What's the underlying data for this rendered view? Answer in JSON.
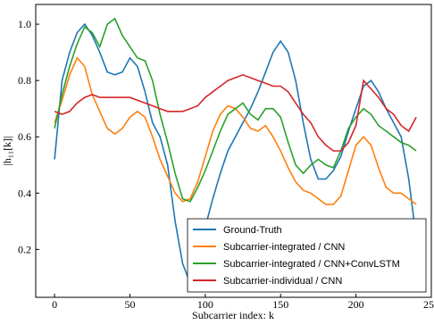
{
  "chart_data": {
    "type": "line",
    "x_label": "Subcarrier index: k",
    "y_label": "|h₁₁[k]|",
    "x": [
      0,
      5,
      10,
      15,
      20,
      25,
      30,
      35,
      40,
      45,
      50,
      55,
      60,
      65,
      70,
      75,
      80,
      85,
      90,
      95,
      100,
      105,
      110,
      115,
      120,
      125,
      130,
      135,
      140,
      145,
      150,
      155,
      160,
      165,
      170,
      175,
      180,
      185,
      190,
      195,
      200,
      205,
      210,
      215,
      220,
      225,
      230,
      235,
      240
    ],
    "series": [
      {
        "name": "Ground-Truth",
        "color": "#1f77b4",
        "values": [
          0.52,
          0.8,
          0.9,
          0.97,
          1.0,
          0.96,
          0.9,
          0.83,
          0.82,
          0.83,
          0.88,
          0.85,
          0.76,
          0.65,
          0.6,
          0.5,
          0.3,
          0.15,
          0.08,
          0.15,
          0.28,
          0.38,
          0.47,
          0.55,
          0.6,
          0.65,
          0.7,
          0.76,
          0.83,
          0.9,
          0.94,
          0.9,
          0.8,
          0.65,
          0.52,
          0.45,
          0.45,
          0.48,
          0.53,
          0.62,
          0.7,
          0.78,
          0.8,
          0.76,
          0.7,
          0.65,
          0.6,
          0.45,
          0.24
        ]
      },
      {
        "name": "Subcarrier-integrated / CNN",
        "color": "#ff7f0e",
        "values": [
          0.65,
          0.73,
          0.82,
          0.88,
          0.85,
          0.75,
          0.69,
          0.63,
          0.61,
          0.63,
          0.67,
          0.69,
          0.67,
          0.6,
          0.52,
          0.46,
          0.4,
          0.37,
          0.38,
          0.44,
          0.53,
          0.62,
          0.68,
          0.71,
          0.7,
          0.67,
          0.63,
          0.62,
          0.64,
          0.6,
          0.55,
          0.49,
          0.44,
          0.41,
          0.4,
          0.38,
          0.36,
          0.36,
          0.39,
          0.48,
          0.57,
          0.6,
          0.57,
          0.49,
          0.42,
          0.4,
          0.4,
          0.38,
          0.36
        ]
      },
      {
        "name": "Subcarrier-integrated / CNN+ConvLSTM",
        "color": "#2ca02c",
        "values": [
          0.63,
          0.75,
          0.85,
          0.93,
          0.99,
          0.97,
          0.92,
          1.0,
          1.02,
          0.96,
          0.92,
          0.88,
          0.87,
          0.8,
          0.68,
          0.58,
          0.47,
          0.38,
          0.37,
          0.42,
          0.48,
          0.55,
          0.62,
          0.68,
          0.7,
          0.72,
          0.68,
          0.66,
          0.7,
          0.7,
          0.67,
          0.58,
          0.5,
          0.47,
          0.5,
          0.52,
          0.5,
          0.49,
          0.55,
          0.63,
          0.67,
          0.7,
          0.68,
          0.64,
          0.62,
          0.6,
          0.58,
          0.57,
          0.55
        ]
      },
      {
        "name": "Subcarrier-individual / CNN",
        "color": "#d62728",
        "values": [
          0.69,
          0.68,
          0.69,
          0.72,
          0.74,
          0.75,
          0.74,
          0.74,
          0.74,
          0.74,
          0.74,
          0.73,
          0.72,
          0.71,
          0.7,
          0.69,
          0.69,
          0.69,
          0.7,
          0.71,
          0.74,
          0.76,
          0.78,
          0.8,
          0.81,
          0.82,
          0.81,
          0.8,
          0.79,
          0.78,
          0.78,
          0.76,
          0.72,
          0.68,
          0.65,
          0.6,
          0.57,
          0.55,
          0.55,
          0.58,
          0.64,
          0.8,
          0.77,
          0.74,
          0.7,
          0.68,
          0.64,
          0.62,
          0.67
        ]
      }
    ],
    "xlim": [
      -12.5,
      250
    ],
    "ylim": [
      0.03,
      1.07
    ],
    "xticks": [
      0,
      50,
      100,
      150,
      200,
      250
    ],
    "yticks": [
      0.2,
      0.4,
      0.6,
      0.8,
      {
        "value": 1,
        "label": "1.0"
      }
    ],
    "legend": "lower right"
  }
}
